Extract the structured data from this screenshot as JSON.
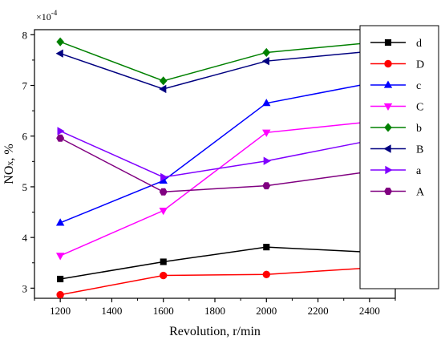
{
  "chart_data": {
    "type": "line",
    "x": [
      1200,
      1600,
      2000,
      2400
    ],
    "xlabel": "Revolution, r/min",
    "ylabel_main": "NO",
    "ylabel_sub": "x",
    "ylabel_rest": ", %",
    "scale_label_base": "×10",
    "scale_label_exp": "-4",
    "xlim": [
      1100,
      2500
    ],
    "ylim": [
      2.8,
      8.1
    ],
    "xticks": [
      1200,
      1400,
      1600,
      1800,
      2000,
      2200,
      2400
    ],
    "yticks": [
      3,
      4,
      5,
      6,
      7,
      8
    ],
    "grid": false,
    "legend_position": "top-right",
    "series": [
      {
        "name": "d",
        "color": "#000000",
        "marker": "square",
        "values": [
          3.18,
          3.52,
          3.81,
          3.71
        ]
      },
      {
        "name": "D",
        "color": "#ff0000",
        "marker": "circle",
        "values": [
          2.87,
          3.25,
          3.27,
          3.4
        ]
      },
      {
        "name": "c",
        "color": "#0000ff",
        "marker": "triangle-up",
        "values": [
          4.29,
          5.12,
          6.65,
          7.04
        ]
      },
      {
        "name": "C",
        "color": "#ff00ff",
        "marker": "triangle-down",
        "values": [
          3.64,
          4.53,
          6.07,
          6.28
        ]
      },
      {
        "name": "b",
        "color": "#008000",
        "marker": "diamond",
        "values": [
          7.86,
          7.09,
          7.65,
          7.84
        ]
      },
      {
        "name": "B",
        "color": "#000080",
        "marker": "triangle-left",
        "values": [
          7.63,
          6.93,
          7.48,
          7.67
        ]
      },
      {
        "name": "a",
        "color": "#8000ff",
        "marker": "triangle-right",
        "values": [
          6.1,
          5.19,
          5.51,
          5.91
        ]
      },
      {
        "name": "A",
        "color": "#800080",
        "marker": "hexagon",
        "values": [
          5.96,
          4.9,
          5.02,
          5.3
        ]
      }
    ]
  }
}
